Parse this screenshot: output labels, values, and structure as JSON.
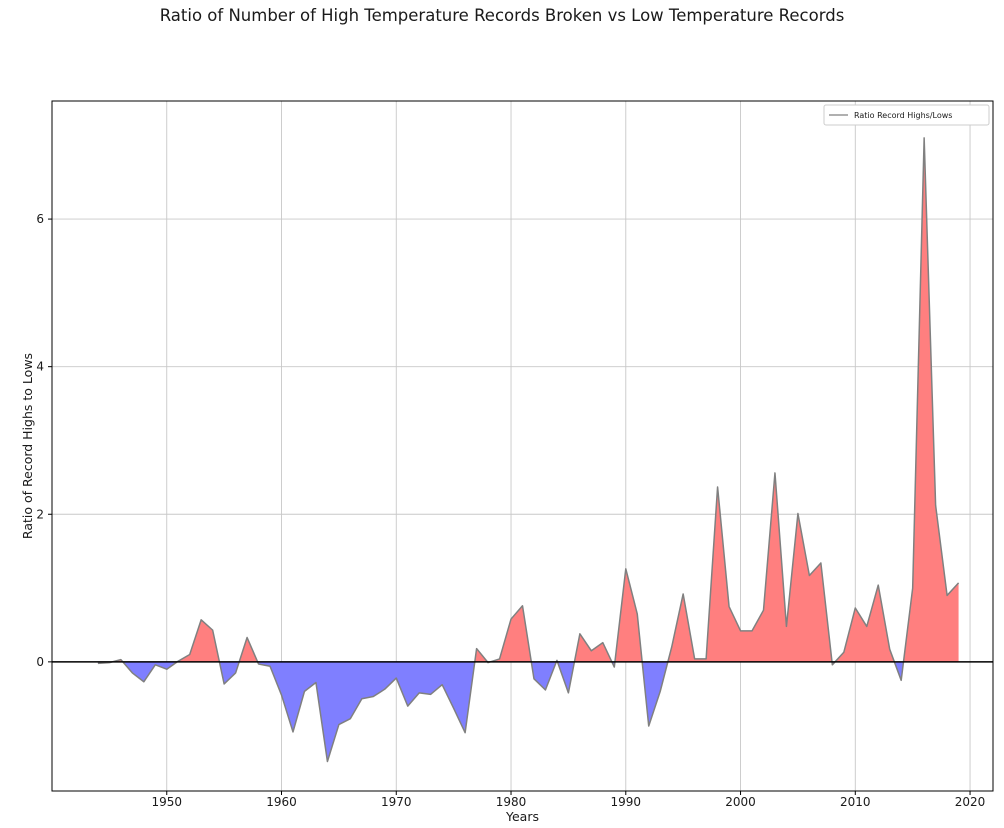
{
  "chart_data": {
    "type": "area",
    "title": "Ratio of Number of High Temperature Records Broken vs Low Temperature Records",
    "xlabel": "Years",
    "ylabel": "Ratio of Record Highs to Lows",
    "xlim": [
      1940,
      2022
    ],
    "ylim": [
      -1.75,
      7.6
    ],
    "xticks": [
      1950,
      1960,
      1970,
      1980,
      1990,
      2000,
      2010,
      2020
    ],
    "yticks": [
      0,
      2,
      4,
      6
    ],
    "grid": true,
    "legend": {
      "position": "top-right",
      "entries": [
        "Ratio Record Highs/Lows"
      ]
    },
    "colors": {
      "positive": "#ff7f7f",
      "negative": "#7f7fff",
      "line": "#808080",
      "zero_line": "#000000",
      "grid": "#c8c8c8"
    },
    "series": [
      {
        "name": "Ratio Record Highs/Lows",
        "x": [
          1944,
          1945,
          1946,
          1947,
          1948,
          1949,
          1950,
          1951,
          1952,
          1953,
          1954,
          1955,
          1956,
          1957,
          1958,
          1959,
          1960,
          1961,
          1962,
          1963,
          1964,
          1965,
          1966,
          1967,
          1968,
          1969,
          1970,
          1971,
          1972,
          1973,
          1974,
          1975,
          1976,
          1977,
          1978,
          1979,
          1980,
          1981,
          1982,
          1983,
          1984,
          1985,
          1986,
          1987,
          1988,
          1989,
          1990,
          1991,
          1992,
          1993,
          1994,
          1995,
          1996,
          1997,
          1998,
          1999,
          2000,
          2001,
          2002,
          2003,
          2004,
          2005,
          2006,
          2007,
          2008,
          2009,
          2010,
          2011,
          2012,
          2013,
          2014,
          2015,
          2016,
          2017,
          2018,
          2019
        ],
        "y": [
          -0.02,
          -0.01,
          0.03,
          -0.15,
          -0.27,
          -0.04,
          -0.1,
          0.01,
          0.1,
          0.57,
          0.43,
          -0.3,
          -0.15,
          0.33,
          -0.03,
          -0.06,
          -0.45,
          -0.95,
          -0.4,
          -0.28,
          -1.35,
          -0.85,
          -0.77,
          -0.5,
          -0.47,
          -0.37,
          -0.22,
          -0.6,
          -0.42,
          -0.44,
          -0.31,
          -0.63,
          -0.96,
          0.18,
          -0.01,
          0.04,
          0.58,
          0.76,
          -0.23,
          -0.38,
          0.02,
          -0.42,
          0.38,
          0.15,
          0.26,
          -0.07,
          1.26,
          0.65,
          -0.87,
          -0.4,
          0.2,
          0.92,
          0.04,
          0.04,
          2.37,
          0.75,
          0.42,
          0.42,
          0.7,
          2.56,
          0.48,
          2.01,
          1.17,
          1.34,
          -0.04,
          0.13,
          0.73,
          0.48,
          1.04,
          0.17,
          -0.25,
          1.0,
          7.1,
          2.12,
          0.9,
          1.07
        ]
      }
    ]
  }
}
